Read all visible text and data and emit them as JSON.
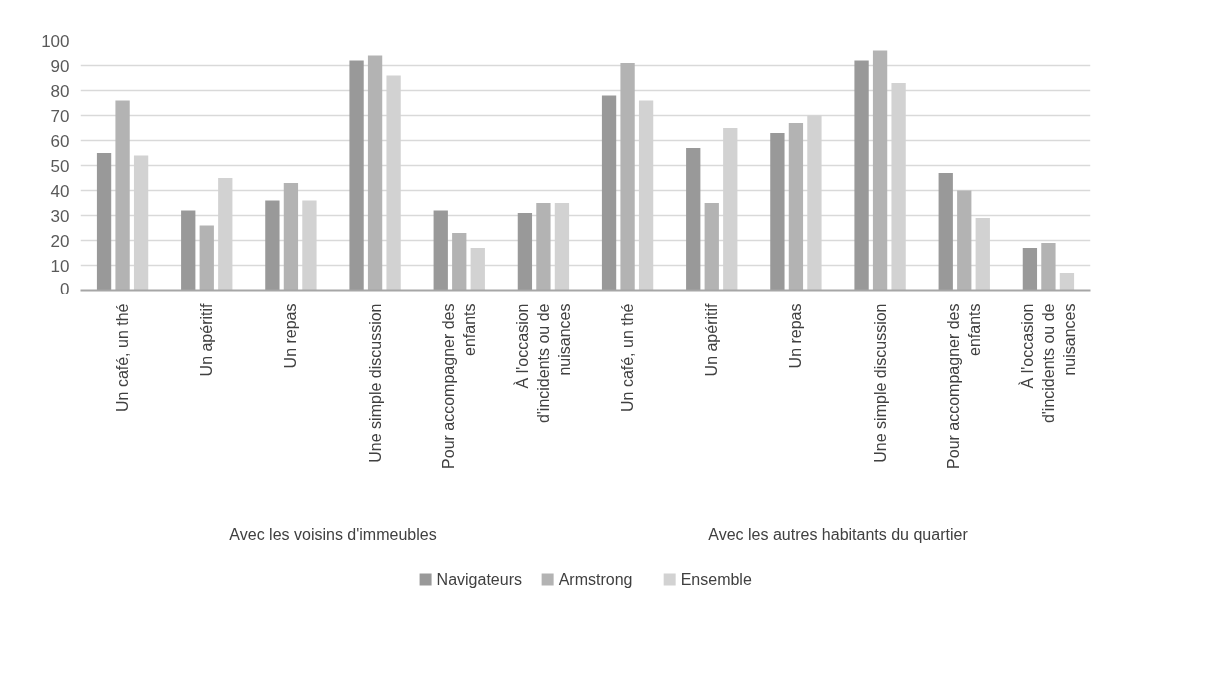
{
  "chart_data": {
    "type": "bar",
    "categories": [
      "Un café, un thé",
      "Un apéritif",
      "Un repas",
      "Une simple discussion",
      "Pour accompagner des enfants",
      "À l'occasion d'incidents ou de nuisances",
      "Un café, un thé",
      "Un apéritif",
      "Un repas",
      "Une simple discussion",
      "Pour accompagner des enfants",
      "À l'occasion d'incidents ou de nuisances"
    ],
    "series": [
      {
        "name": "Navigateurs",
        "color": "#999999",
        "values": [
          55,
          32,
          36,
          92,
          32,
          31,
          78,
          57,
          63,
          92,
          47,
          17
        ]
      },
      {
        "name": "Armstrong",
        "color": "#b3b3b3",
        "values": [
          76,
          26,
          43,
          94,
          23,
          35,
          91,
          35,
          67,
          96,
          40,
          19
        ]
      },
      {
        "name": "Ensemble",
        "color": "#d2d2d2",
        "values": [
          54,
          45,
          36,
          86,
          17,
          35,
          76,
          65,
          70,
          83,
          29,
          7
        ]
      }
    ],
    "annotations": [
      "Avec les voisins d'immeubles",
      "Avec les autres habitants du quartier"
    ],
    "ylim": [
      0,
      100
    ],
    "yticks": [
      0,
      10,
      20,
      30,
      40,
      50,
      60,
      70,
      80,
      90,
      100
    ],
    "grid": "y",
    "legend": "bottom"
  }
}
